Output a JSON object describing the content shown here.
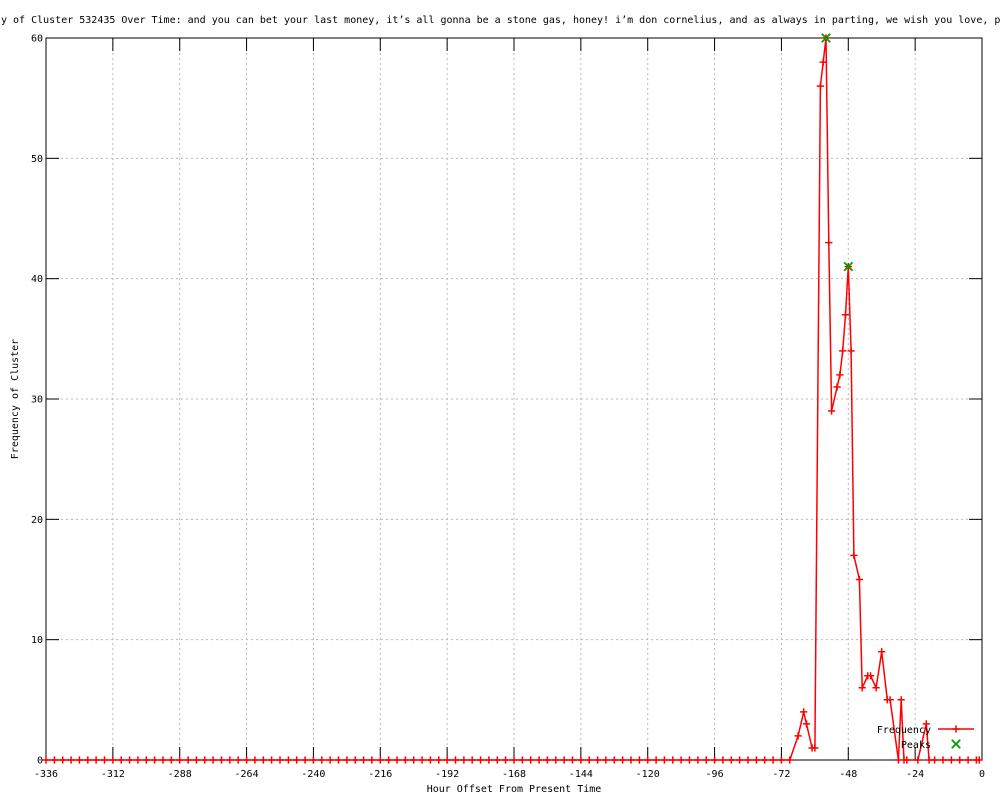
{
  "title": "y of Cluster 532435 Over Time: and you can bet your last money, it’s all gonna be a stone gas, honey! i’m don cornelius, and as always in parting, we wish you love, pe",
  "colors": {
    "background": "#ffffff",
    "axis": "#000000",
    "grid": "#b8b8b8",
    "frequency_line": "#ff0000",
    "peaks_marker": "#00a000"
  },
  "chart_data": {
    "type": "line",
    "title": "y of Cluster 532435 Over Time: and you can bet your last money, it’s all gonna be a stone gas, honey! i’m don cornelius, and as always in parting, we wish you love, pe",
    "xlabel": "Hour Offset From Present Time",
    "ylabel": "Frequency of Cluster",
    "xlim": [
      -336,
      0
    ],
    "ylim": [
      0,
      60
    ],
    "xticks": [
      -336,
      -312,
      -288,
      -264,
      -240,
      -216,
      -192,
      -168,
      -144,
      -120,
      -96,
      -72,
      -48,
      -24,
      0
    ],
    "yticks": [
      0,
      10,
      20,
      30,
      40,
      50,
      60
    ],
    "grid": true,
    "legend_position": "inside-bottom-right",
    "series": [
      {
        "name": "Frequency",
        "style": "linespoints",
        "marker": "plus",
        "color": "#ff0000",
        "x": [
          -336,
          -333,
          -330,
          -327,
          -324,
          -321,
          -318,
          -315,
          -312,
          -309,
          -306,
          -303,
          -300,
          -297,
          -294,
          -291,
          -288,
          -285,
          -282,
          -279,
          -276,
          -273,
          -270,
          -267,
          -264,
          -261,
          -258,
          -255,
          -252,
          -249,
          -246,
          -243,
          -240,
          -237,
          -234,
          -231,
          -228,
          -225,
          -222,
          -219,
          -216,
          -213,
          -210,
          -207,
          -204,
          -201,
          -198,
          -195,
          -192,
          -189,
          -186,
          -183,
          -180,
          -177,
          -174,
          -171,
          -168,
          -165,
          -162,
          -159,
          -156,
          -153,
          -150,
          -147,
          -144,
          -141,
          -138,
          -135,
          -132,
          -129,
          -126,
          -123,
          -120,
          -117,
          -114,
          -111,
          -108,
          -105,
          -102,
          -99,
          -96,
          -93,
          -90,
          -87,
          -84,
          -81,
          -78,
          -75,
          -72,
          -69,
          -66,
          -64,
          -63,
          -61,
          -60,
          -58,
          -57,
          -56,
          -55,
          -54,
          -52,
          -51,
          -50,
          -49,
          -48,
          -47,
          -46,
          -44,
          -43,
          -41,
          -40,
          -38,
          -36,
          -34,
          -33,
          -30,
          -29,
          -28,
          -27,
          -23,
          -20,
          -19,
          -17,
          -14,
          -11,
          -8,
          -5,
          -2,
          -1
        ],
        "y": [
          0,
          0,
          0,
          0,
          0,
          0,
          0,
          0,
          0,
          0,
          0,
          0,
          0,
          0,
          0,
          0,
          0,
          0,
          0,
          0,
          0,
          0,
          0,
          0,
          0,
          0,
          0,
          0,
          0,
          0,
          0,
          0,
          0,
          0,
          0,
          0,
          0,
          0,
          0,
          0,
          0,
          0,
          0,
          0,
          0,
          0,
          0,
          0,
          0,
          0,
          0,
          0,
          0,
          0,
          0,
          0,
          0,
          0,
          0,
          0,
          0,
          0,
          0,
          0,
          0,
          0,
          0,
          0,
          0,
          0,
          0,
          0,
          0,
          0,
          0,
          0,
          0,
          0,
          0,
          0,
          0,
          0,
          0,
          0,
          0,
          0,
          0,
          0,
          0,
          0,
          2,
          4,
          3,
          1,
          1,
          56,
          58,
          60,
          43,
          29,
          31,
          32,
          34,
          37,
          41,
          34,
          17,
          15,
          6,
          7,
          7,
          6,
          9,
          5,
          5,
          0,
          5,
          0,
          0,
          0,
          3,
          0,
          0,
          0,
          0,
          0,
          0,
          0,
          0
        ]
      },
      {
        "name": "Peaks",
        "style": "points",
        "marker": "cross",
        "color": "#00a000",
        "x": [
          -56,
          -48
        ],
        "y": [
          60,
          41
        ]
      }
    ]
  }
}
